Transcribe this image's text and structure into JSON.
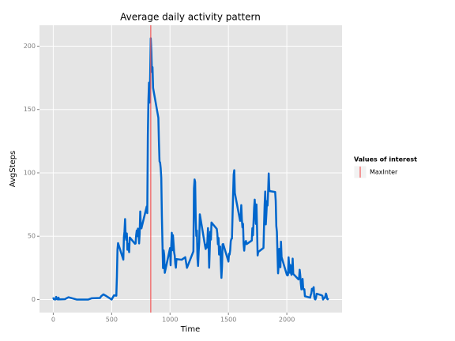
{
  "chart_data": {
    "type": "line",
    "title": "Average daily activity pattern",
    "xlabel": "Time",
    "ylabel": "AvgSteps",
    "xlim": [
      -117.75,
      2472.75
    ],
    "ylim": [
      -10.3,
      216.5
    ],
    "xticks": [
      0,
      500,
      1000,
      1500,
      2000
    ],
    "yticks": [
      0,
      50,
      100,
      150,
      200
    ],
    "grid": true,
    "legend_title": "Values of interest",
    "reference_lines": [
      {
        "name": "MaxInter",
        "x": 835,
        "color": "#f35a5a"
      }
    ],
    "series": [
      {
        "color": "#0066cc",
        "x": [
          0,
          5,
          10,
          15,
          20,
          25,
          30,
          35,
          40,
          45,
          50,
          55,
          100,
          130,
          200,
          230,
          300,
          330,
          400,
          410,
          430,
          440,
          450,
          500,
          520,
          540,
          545,
          550,
          555,
          600,
          605,
          610,
          615,
          620,
          625,
          630,
          635,
          640,
          650,
          655,
          700,
          705,
          710,
          715,
          720,
          725,
          730,
          735,
          740,
          745,
          750,
          755,
          800,
          805,
          810,
          815,
          820,
          825,
          830,
          835,
          840,
          845,
          850,
          855,
          900,
          905,
          910,
          915,
          920,
          925,
          930,
          935,
          940,
          945,
          950,
          955,
          1000,
          1005,
          1010,
          1015,
          1020,
          1025,
          1030,
          1035,
          1040,
          1045,
          1050,
          1055,
          1100,
          1130,
          1145,
          1200,
          1205,
          1210,
          1215,
          1220,
          1225,
          1230,
          1235,
          1240,
          1245,
          1250,
          1255,
          1300,
          1305,
          1310,
          1315,
          1320,
          1325,
          1330,
          1335,
          1340,
          1345,
          1350,
          1355,
          1400,
          1405,
          1410,
          1415,
          1420,
          1425,
          1430,
          1435,
          1440,
          1445,
          1450,
          1455,
          1500,
          1505,
          1510,
          1515,
          1520,
          1525,
          1530,
          1535,
          1540,
          1545,
          1550,
          1555,
          1600,
          1605,
          1610,
          1615,
          1620,
          1625,
          1630,
          1635,
          1640,
          1645,
          1650,
          1655,
          1700,
          1705,
          1710,
          1715,
          1720,
          1725,
          1730,
          1735,
          1740,
          1745,
          1750,
          1755,
          1800,
          1805,
          1810,
          1815,
          1820,
          1825,
          1830,
          1835,
          1840,
          1845,
          1850,
          1855,
          1900,
          1905,
          1910,
          1915,
          1920,
          1925,
          1930,
          1935,
          1940,
          1945,
          1950,
          1955,
          2000,
          2005,
          2010,
          2015,
          2020,
          2025,
          2030,
          2035,
          2040,
          2045,
          2050,
          2055,
          2100,
          2105,
          2110,
          2115,
          2120,
          2125,
          2130,
          2135,
          2140,
          2145,
          2150,
          2155,
          2200,
          2205,
          2210,
          2215,
          2220,
          2225,
          2230,
          2235,
          2240,
          2245,
          2250,
          2255,
          2300,
          2305,
          2310,
          2315,
          2320,
          2325,
          2330,
          2335,
          2340,
          2345,
          2350,
          2355
        ],
        "values": [
          1.7,
          0.3,
          0.1,
          0.2,
          0.1,
          2.1,
          0.5,
          0.9,
          0,
          1.5,
          0.3,
          0.1,
          0.3,
          1.8,
          0,
          0,
          0,
          1.0,
          1.2,
          2.6,
          4.1,
          3.5,
          3.0,
          0,
          3.3,
          3.0,
          18,
          39.5,
          44.5,
          31.5,
          49.3,
          53.8,
          63.5,
          50,
          47.1,
          52.2,
          39.3,
          44.0,
          37.4,
          49.0,
          44.0,
          44.2,
          50.8,
          54.5,
          50,
          56,
          55.7,
          44.3,
          52.3,
          69.5,
          57.8,
          56.2,
          73.4,
          68.2,
          129.4,
          157.5,
          171.2,
          155.4,
          177.3,
          206.2,
          195.9,
          179.6,
          183.4,
          167.0,
          143.5,
          124.0,
          109.1,
          108.1,
          103.7,
          96,
          66.2,
          45.2,
          24.8,
          38.8,
          35,
          21.1,
          40.6,
          27,
          42.4,
          52.7,
          38.9,
          50.8,
          44.3,
          37.4,
          34.7,
          28.3,
          25.1,
          31.9,
          31.4,
          33.4,
          25,
          38,
          87.7,
          94.8,
          92.8,
          63.4,
          50.2,
          54.5,
          32.4,
          26.5,
          37.7,
          45.1,
          67.3,
          42.3,
          39.9,
          43.3,
          41.0,
          46.2,
          56.4,
          42.8,
          25.1,
          40.0,
          53.5,
          47.3,
          60.8,
          55.8,
          52.0,
          43.6,
          48.7,
          35.5,
          37.5,
          41.8,
          27.5,
          17.1,
          26.1,
          43.6,
          43.8,
          30.0,
          36.1,
          35.5,
          38.8,
          46.0,
          47.8,
          48.1,
          65.3,
          82.9,
          98.7,
          102.1,
          84.0,
          62.1,
          64.1,
          74.5,
          63.2,
          56.9,
          59.8,
          43.9,
          38.6,
          44.7,
          45.5,
          46.2,
          43.7,
          46.6,
          56.3,
          50.7,
          61.2,
          72.7,
          78.9,
          68.9,
          59.7,
          75.1,
          56.5,
          34.8,
          37.5,
          40.7,
          58.0,
          74.7,
          85.3,
          59.3,
          67.8,
          77.7,
          74.2,
          85.3,
          99.5,
          86.6,
          85.6,
          84.9,
          77.8,
          58.0,
          53.4,
          36.3,
          20.7,
          27.4,
          40.0,
          30.2,
          25.5,
          45.7,
          33.5,
          19.6,
          19.0,
          19.3,
          33.3,
          26.8,
          21.2,
          27.3,
          21.3,
          19.5,
          21.3,
          32.3,
          20.2,
          15.9,
          17.2,
          23.5,
          19.2,
          12.5,
          8.0,
          14.7,
          16.3,
          8.7,
          7.8,
          8.1,
          2.6,
          1.5,
          3.7,
          4.8,
          8.5,
          7.1,
          8.7,
          9.8,
          2.2,
          0.3,
          0.1,
          1.6,
          4.6,
          3.3,
          2.8,
          0,
          0.8,
          1.0,
          1.6,
          2.6,
          4.7,
          3.3,
          0.6,
          0.2,
          1.1
        ]
      }
    ]
  }
}
